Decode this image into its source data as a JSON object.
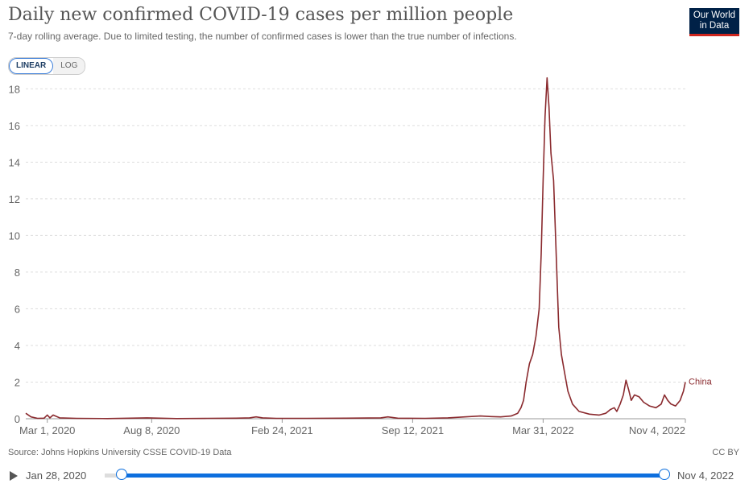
{
  "header": {
    "title": "Daily new confirmed COVID-19 cases per million people",
    "subtitle": "7-day rolling average. Due to limited testing, the number of confirmed cases is lower than the true number of infections.",
    "logo_line1": "Our World",
    "logo_line2": "in Data"
  },
  "controls": {
    "linear_label": "LINEAR",
    "log_label": "LOG",
    "selected": "LINEAR"
  },
  "footer": {
    "source": "Source: Johns Hopkins University CSSE COVID-19 Data",
    "license": "CC BY"
  },
  "timeline": {
    "start_label": "Jan 28, 2020",
    "end_label": "Nov 4, 2022",
    "start_fraction": 0.03,
    "end_fraction": 1.0
  },
  "colors": {
    "series": "#8a2a2e",
    "accent": "#0d6fde",
    "grid": "#dddddd"
  },
  "chart_data": {
    "type": "line",
    "title": "Daily new confirmed COVID-19 cases per million people",
    "subtitle": "7-day rolling average. Due to limited testing, the number of confirmed cases is lower than the true number of infections.",
    "x_range": [
      "2020-01-28",
      "2022-11-04"
    ],
    "ylim": [
      0,
      18
    ],
    "y_ticks": [
      0,
      2,
      4,
      6,
      8,
      10,
      12,
      14,
      16,
      18
    ],
    "x_ticks": [
      {
        "date": "2020-03-01",
        "label": "Mar 1, 2020"
      },
      {
        "date": "2020-08-08",
        "label": "Aug 8, 2020"
      },
      {
        "date": "2021-02-24",
        "label": "Feb 24, 2021"
      },
      {
        "date": "2021-09-12",
        "label": "Sep 12, 2021"
      },
      {
        "date": "2022-03-31",
        "label": "Mar 31, 2022"
      },
      {
        "date": "2022-11-04",
        "label": "Nov 4, 2022"
      }
    ],
    "grid": true,
    "series": [
      {
        "name": "China",
        "color": "#8a2a2e",
        "points": [
          [
            "2020-01-28",
            0.3
          ],
          [
            "2020-02-05",
            0.1
          ],
          [
            "2020-02-15",
            0.02
          ],
          [
            "2020-02-25",
            0.03
          ],
          [
            "2020-03-01",
            0.2
          ],
          [
            "2020-03-05",
            0.05
          ],
          [
            "2020-03-10",
            0.2
          ],
          [
            "2020-03-20",
            0.05
          ],
          [
            "2020-04-15",
            0.02
          ],
          [
            "2020-06-01",
            0.01
          ],
          [
            "2020-08-01",
            0.05
          ],
          [
            "2020-09-15",
            0.01
          ],
          [
            "2020-11-01",
            0.02
          ],
          [
            "2020-12-15",
            0.03
          ],
          [
            "2021-01-05",
            0.05
          ],
          [
            "2021-01-15",
            0.1
          ],
          [
            "2021-01-25",
            0.05
          ],
          [
            "2021-02-15",
            0.02
          ],
          [
            "2021-04-01",
            0.02
          ],
          [
            "2021-06-01",
            0.03
          ],
          [
            "2021-07-25",
            0.05
          ],
          [
            "2021-08-05",
            0.1
          ],
          [
            "2021-08-20",
            0.03
          ],
          [
            "2021-10-01",
            0.02
          ],
          [
            "2021-11-05",
            0.05
          ],
          [
            "2021-12-01",
            0.1
          ],
          [
            "2021-12-25",
            0.15
          ],
          [
            "2022-01-10",
            0.12
          ],
          [
            "2022-01-25",
            0.1
          ],
          [
            "2022-02-10",
            0.15
          ],
          [
            "2022-02-20",
            0.3
          ],
          [
            "2022-02-25",
            0.6
          ],
          [
            "2022-03-01",
            1.0
          ],
          [
            "2022-03-05",
            2.0
          ],
          [
            "2022-03-10",
            3.0
          ],
          [
            "2022-03-15",
            3.5
          ],
          [
            "2022-03-20",
            4.5
          ],
          [
            "2022-03-25",
            6.0
          ],
          [
            "2022-03-28",
            9.0
          ],
          [
            "2022-03-31",
            13.0
          ],
          [
            "2022-04-03",
            16.5
          ],
          [
            "2022-04-06",
            18.6
          ],
          [
            "2022-04-09",
            17.0
          ],
          [
            "2022-04-12",
            14.5
          ],
          [
            "2022-04-16",
            13.0
          ],
          [
            "2022-04-20",
            9.0
          ],
          [
            "2022-04-24",
            5.0
          ],
          [
            "2022-04-28",
            3.5
          ],
          [
            "2022-05-03",
            2.5
          ],
          [
            "2022-05-08",
            1.5
          ],
          [
            "2022-05-15",
            0.8
          ],
          [
            "2022-05-25",
            0.4
          ],
          [
            "2022-06-10",
            0.25
          ],
          [
            "2022-06-25",
            0.2
          ],
          [
            "2022-07-05",
            0.3
          ],
          [
            "2022-07-12",
            0.5
          ],
          [
            "2022-07-18",
            0.6
          ],
          [
            "2022-07-22",
            0.4
          ],
          [
            "2022-07-27",
            0.8
          ],
          [
            "2022-08-01",
            1.3
          ],
          [
            "2022-08-05",
            2.1
          ],
          [
            "2022-08-09",
            1.6
          ],
          [
            "2022-08-13",
            1.0
          ],
          [
            "2022-08-18",
            1.3
          ],
          [
            "2022-08-25",
            1.2
          ],
          [
            "2022-09-01",
            0.9
          ],
          [
            "2022-09-10",
            0.7
          ],
          [
            "2022-09-20",
            0.6
          ],
          [
            "2022-09-28",
            0.8
          ],
          [
            "2022-10-03",
            1.3
          ],
          [
            "2022-10-08",
            1.0
          ],
          [
            "2022-10-13",
            0.8
          ],
          [
            "2022-10-20",
            0.7
          ],
          [
            "2022-10-27",
            1.0
          ],
          [
            "2022-11-01",
            1.5
          ],
          [
            "2022-11-04",
            2.0
          ]
        ]
      }
    ]
  }
}
